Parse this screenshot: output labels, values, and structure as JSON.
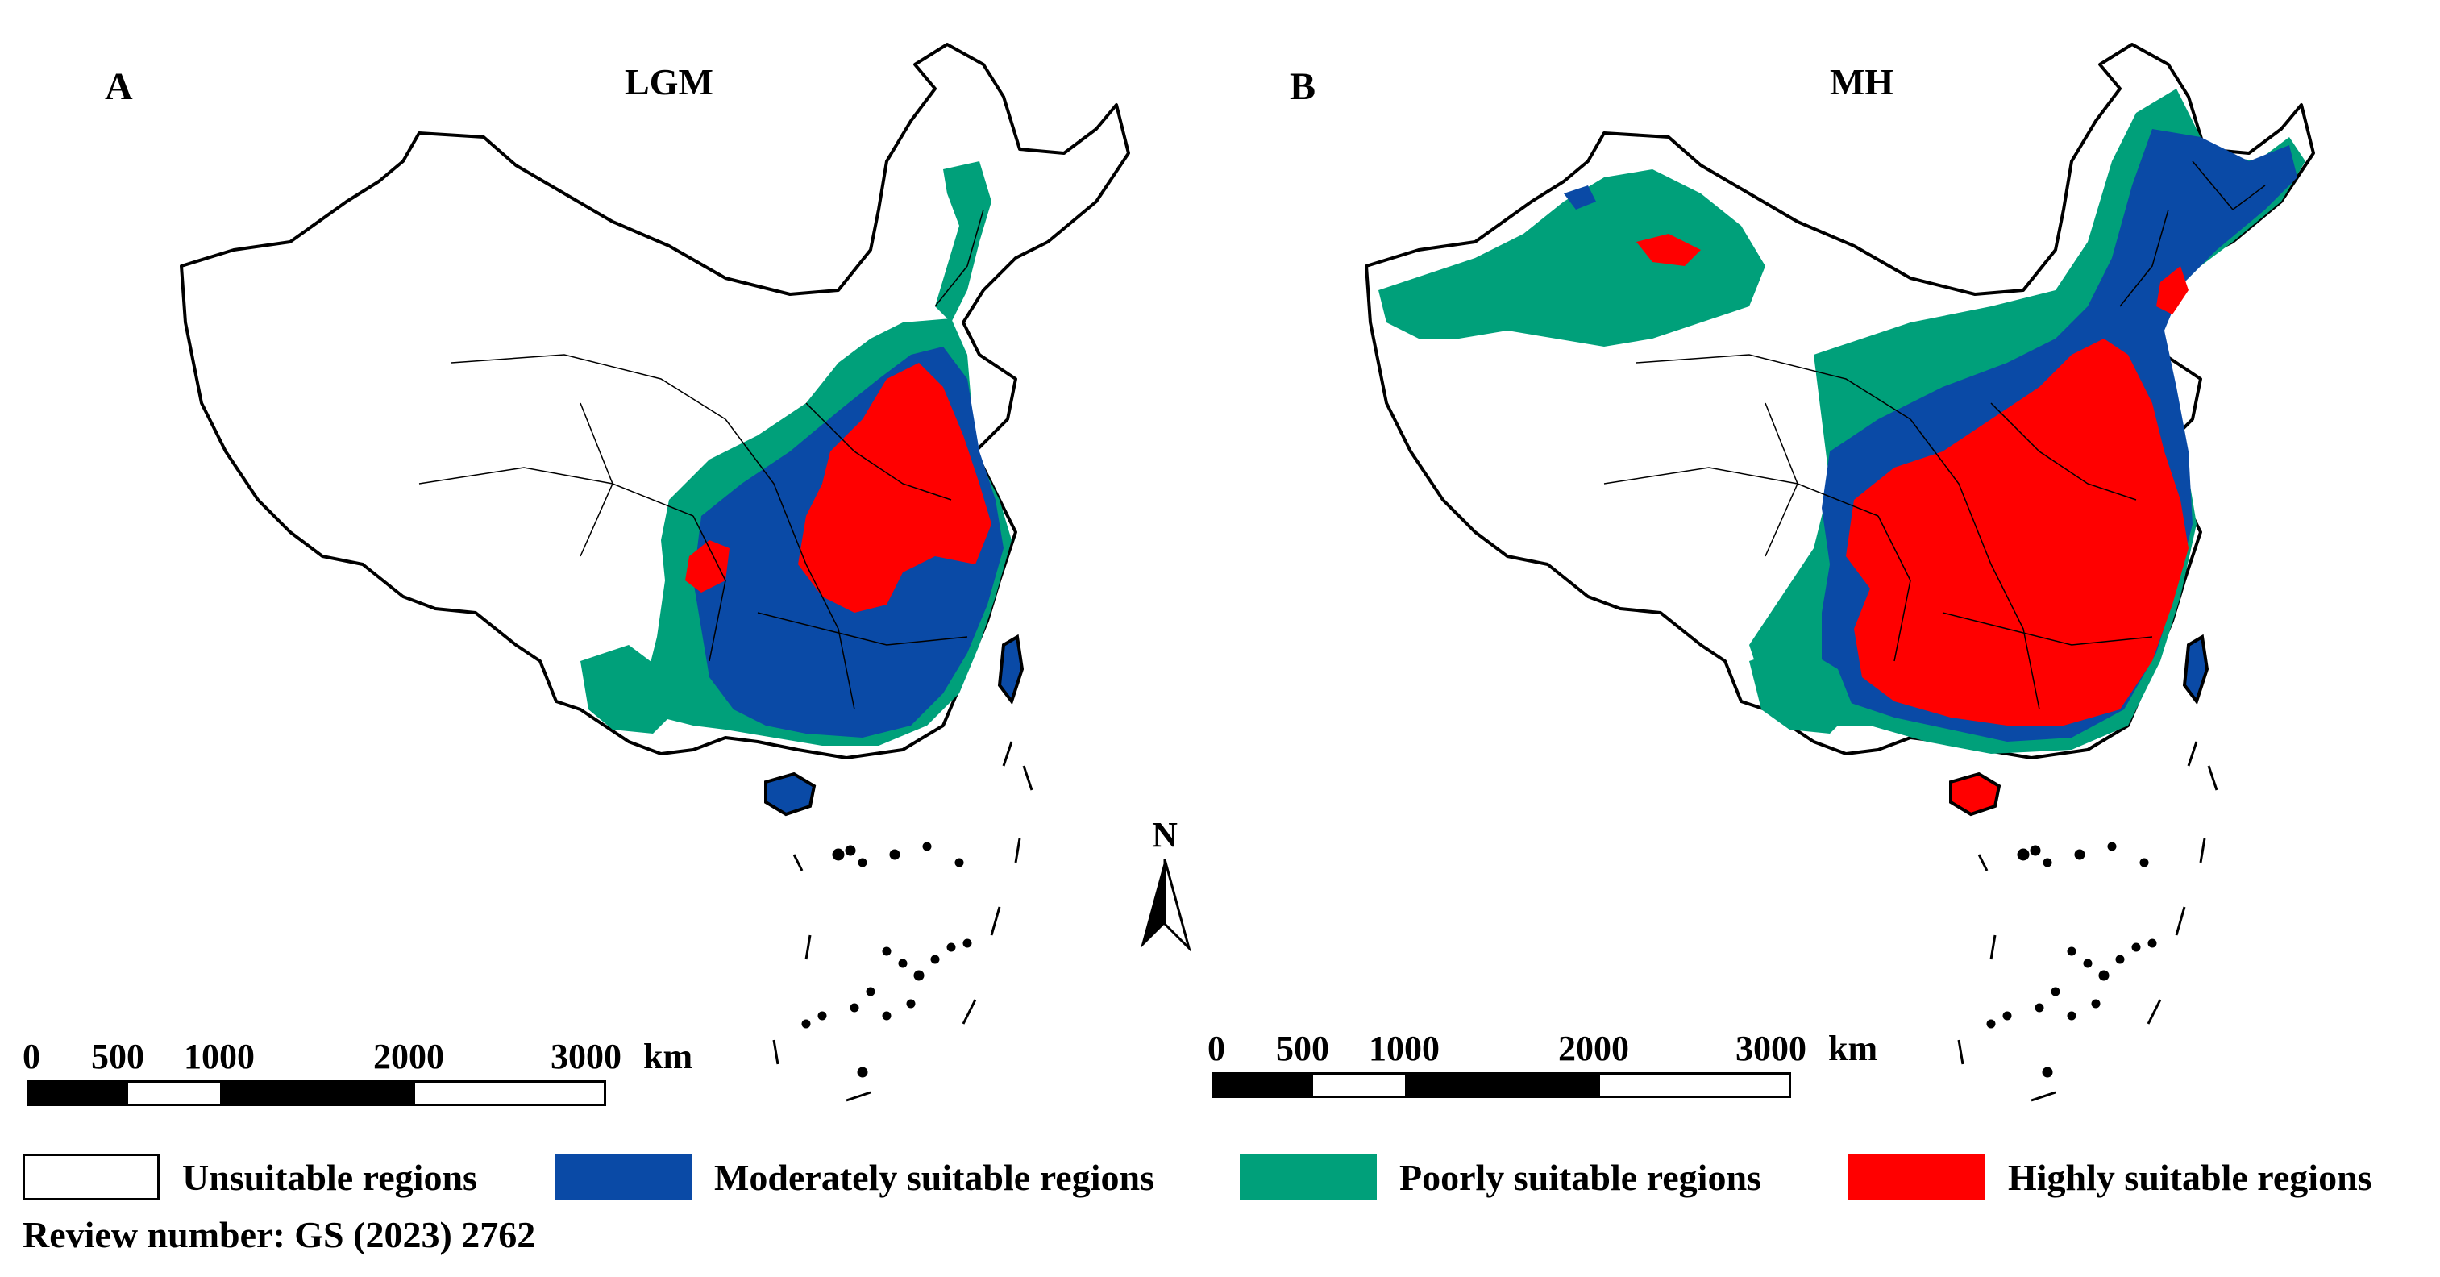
{
  "panels": [
    {
      "letter": "A",
      "title": "LGM"
    },
    {
      "letter": "B",
      "title": "MH"
    }
  ],
  "scalebar": {
    "ticks": [
      "0",
      "500",
      "1000",
      "2000",
      "3000"
    ],
    "unit": "km"
  },
  "north_arrow": {
    "label": "N"
  },
  "legend": [
    {
      "label": "Unsuitable regions",
      "color": "#ffffff"
    },
    {
      "label": "Moderately suitable regions",
      "color": "#0a4aa6"
    },
    {
      "label": "Poorly suitable regions",
      "color": "#00a07a"
    },
    {
      "label": "Highly suitable regions",
      "color": "#ff0000"
    }
  ],
  "review_number": "Review number: GS (2023) 2762",
  "colors": {
    "unsuitable": "#ffffff",
    "moderate": "#0a4aa6",
    "poor": "#00a07a",
    "high": "#ff0000",
    "border": "#000000"
  }
}
